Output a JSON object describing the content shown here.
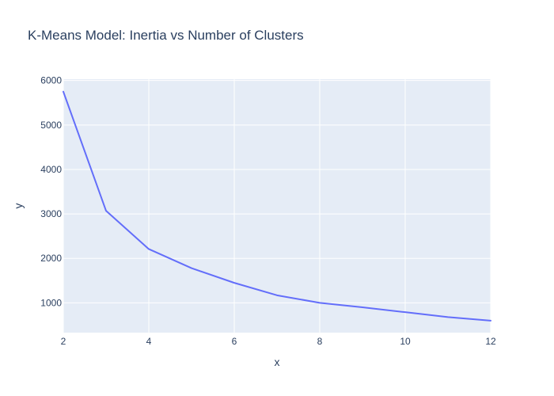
{
  "chart_data": {
    "type": "line",
    "title": "K-Means Model: Inertia vs Number of Clusters",
    "xlabel": "x",
    "ylabel": "y",
    "x": [
      2,
      3,
      4,
      5,
      6,
      7,
      8,
      9,
      10,
      11,
      12
    ],
    "series": [
      {
        "values": [
          5750,
          3070,
          2210,
          1780,
          1450,
          1170,
          1000,
          900,
          790,
          680,
          600
        ]
      }
    ],
    "xlim": [
      2,
      12
    ],
    "ylim": [
      330,
      6030
    ],
    "xticks": [
      "2",
      "4",
      "6",
      "8",
      "10",
      "12"
    ],
    "yticks": [
      "1000",
      "2000",
      "3000",
      "4000",
      "5000",
      "6000"
    ],
    "grid": true,
    "colors": {
      "line": "#636efa",
      "plot_bg": "#e5ecf6",
      "grid": "#ffffff",
      "text": "#2a3f5f"
    }
  }
}
